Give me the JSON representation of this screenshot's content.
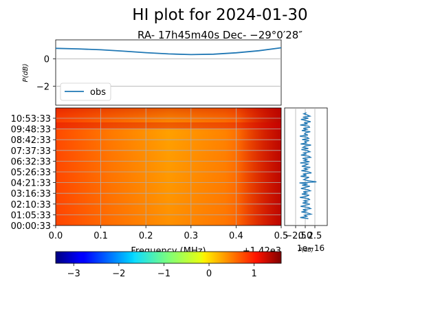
{
  "figure": {
    "title": "HI plot for 2024-01-30",
    "subtitle": "RA- 17h45m40s Dec- −29°0′28″"
  },
  "chart_data": [
    {
      "type": "line",
      "panel": "top",
      "ylabel": "P(dB)",
      "xlim": [
        1420.0,
        1420.5
      ],
      "ylim": [
        -3.4,
        1.4
      ],
      "yticks": [
        "0",
        "−2"
      ],
      "grid": true,
      "legend": {
        "placement": "lower-left",
        "entries": [
          "obs"
        ]
      },
      "series": [
        {
          "name": "obs",
          "color": "#1f77b4",
          "x": [
            1420.0,
            1420.05,
            1420.1,
            1420.15,
            1420.2,
            1420.25,
            1420.3,
            1420.35,
            1420.4,
            1420.45,
            1420.5
          ],
          "values": [
            0.78,
            0.74,
            0.67,
            0.57,
            0.46,
            0.37,
            0.32,
            0.35,
            0.45,
            0.6,
            0.82
          ]
        }
      ]
    },
    {
      "type": "heatmap",
      "panel": "waterfall",
      "xlabel": "Frequency (MHz)",
      "x_offset_label": "+1.42e3",
      "xlim": [
        0.0,
        0.5
      ],
      "xticks": [
        "0.0",
        "0.1",
        "0.2",
        "0.3",
        "0.4",
        "0.5"
      ],
      "yticks": [
        "00:00:33",
        "01:05:33",
        "02:10:33",
        "03:16:33",
        "04:21:33",
        "05:26:33",
        "06:32:33",
        "07:37:33",
        "08:42:33",
        "09:48:33",
        "10:53:33"
      ],
      "colormap": "jet",
      "grid": true
    },
    {
      "type": "line",
      "panel": "side",
      "xlabel": "P(dB)",
      "x_offset_label": "1e−16",
      "xticks": [
        "−2.5",
        "0.0",
        "2.5"
      ],
      "color": "#1f77b4",
      "values": [
        0.3,
        -0.4,
        0.5,
        1.2,
        -0.6,
        0.8,
        -1.1,
        0.2,
        1.4,
        -0.3,
        0.6,
        -1.3,
        0.9,
        1.1,
        -0.5,
        0.4,
        -0.9,
        1.3,
        0.1,
        -0.2,
        0.7,
        -1.4,
        0.5,
        0.9,
        -0.8,
        1.0,
        -0.1,
        0.3,
        -1.2,
        1.5,
        0.0,
        -0.6,
        0.8,
        -1.0,
        0.6,
        1.2,
        -0.4,
        0.2,
        -1.1,
        0.9,
        1.4,
        -0.7,
        0.4,
        -0.3,
        1.1,
        -1.3,
        0.7,
        0.1,
        -0.9,
        1.3,
        -0.2,
        0.5,
        -1.0,
        0.8,
        1.6,
        -0.6,
        0.3,
        -1.2,
        1.0,
        0.2,
        -0.4,
        0.9,
        2.9,
        -1.5,
        0.6,
        -0.8,
        1.2,
        0.0,
        -1.1,
        0.7,
        1.3,
        -0.5,
        0.4,
        -0.9,
        1.0,
        0.2,
        -1.4,
        0.8,
        1.1,
        -0.3,
        0.5,
        -0.7,
        1.2,
        0.1,
        -1.2,
        0.9,
        1.4,
        -0.6,
        0.3,
        -1.0,
        0.7,
        1.5,
        -0.2,
        0.4,
        -1.3,
        0.8
      ]
    },
    {
      "type": "colorbar",
      "panel": "colorbar",
      "colormap": "jet",
      "range": [
        -3.4,
        1.6
      ],
      "ticks": [
        "−3",
        "−2",
        "−1",
        "0",
        "1"
      ],
      "tick_values": [
        -3,
        -2,
        -1,
        0,
        1
      ]
    }
  ]
}
